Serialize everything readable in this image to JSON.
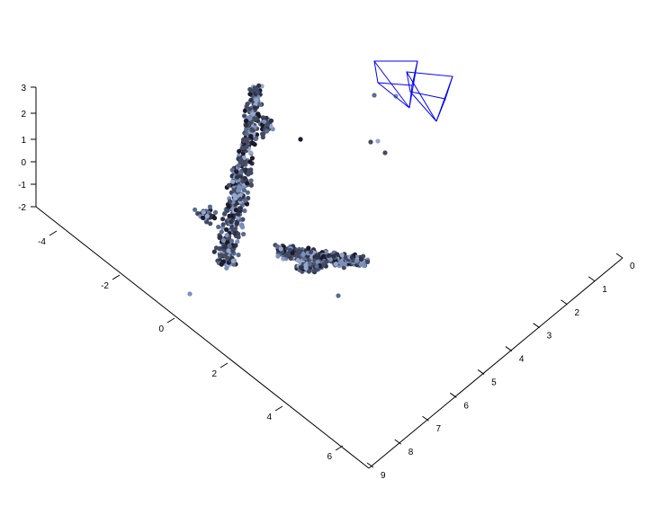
{
  "chart_data": {
    "type": "scatter",
    "title": "",
    "xlabel": "",
    "ylabel": "",
    "zlabel": "",
    "grid": false,
    "axes": {
      "x": {
        "range": [
          -4,
          7
        ],
        "ticks": [
          "-4",
          "-2",
          "0",
          "2",
          "4",
          "6"
        ]
      },
      "y": {
        "range": [
          0,
          9
        ],
        "ticks": [
          "0",
          "1",
          "2",
          "3",
          "4",
          "5",
          "6",
          "7",
          "8",
          "9"
        ]
      },
      "z": {
        "range": [
          -2,
          3
        ],
        "ticks": [
          "-2",
          "-1",
          "0",
          "1",
          "2",
          "3"
        ]
      }
    },
    "colors": {
      "axis": "#000000",
      "camera": "#0000ff",
      "point_palette": [
        "#1a1a2a",
        "#2e3247",
        "#3f4a66",
        "#5a6b8f",
        "#7b8fb7",
        "#95a7cc",
        "#484a5e"
      ]
    },
    "point_clusters": [
      {
        "name": "vertical structure",
        "approx_count": 520
      },
      {
        "name": "horizontal structure",
        "approx_count": 360
      },
      {
        "name": "outliers near cameras",
        "approx_count": 8
      }
    ],
    "cameras": [
      {
        "type": "frustum"
      },
      {
        "type": "frustum"
      }
    ]
  }
}
